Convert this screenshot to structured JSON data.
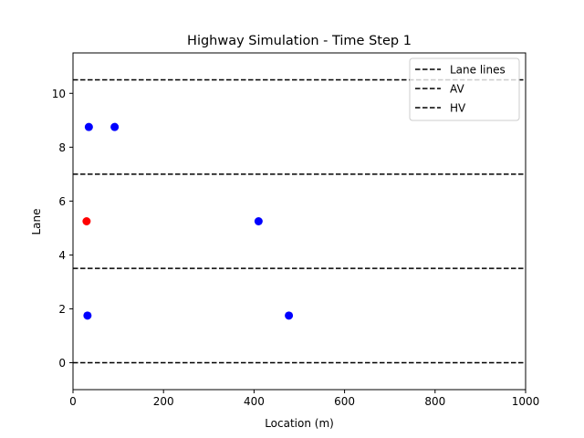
{
  "chart_data": {
    "type": "scatter",
    "title": "Highway Simulation - Time Step 1",
    "xlabel": "Location (m)",
    "ylabel": "Lane",
    "xlim": [
      0,
      1000
    ],
    "ylim": [
      -1,
      11.5
    ],
    "xticks": [
      0,
      200,
      400,
      600,
      800,
      1000
    ],
    "yticks": [
      0,
      2,
      4,
      6,
      8,
      10
    ],
    "grid": false,
    "lane_lines": [
      0,
      3.5,
      7,
      10.5
    ],
    "legend": {
      "placement": "top-right",
      "entries": [
        {
          "label": "Lane lines",
          "style": "dashed-line",
          "color": "#000000"
        },
        {
          "label": "AV",
          "style": "dashed-line",
          "color": "#000000"
        },
        {
          "label": "HV",
          "style": "dashed-line",
          "color": "#000000"
        }
      ]
    },
    "series": [
      {
        "color": "#ff0000",
        "points": [
          {
            "x": 30,
            "y": 5.25
          }
        ]
      },
      {
        "color": "#0000ff",
        "points": [
          {
            "x": 35,
            "y": 8.75
          },
          {
            "x": 92,
            "y": 8.75
          },
          {
            "x": 410,
            "y": 5.25
          },
          {
            "x": 32,
            "y": 1.75
          },
          {
            "x": 477,
            "y": 1.75
          }
        ]
      }
    ]
  }
}
